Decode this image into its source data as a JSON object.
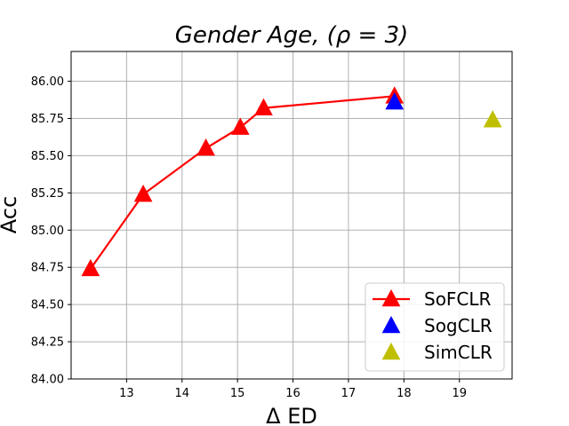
{
  "chart_data": {
    "type": "scatter",
    "title": "Gender  Age, (ρ = 3)",
    "xlabel": "Δ ED",
    "ylabel": "Acc",
    "xlim": [
      12.0,
      19.95
    ],
    "ylim": [
      84.0,
      86.2
    ],
    "xticks": [
      13,
      14,
      15,
      16,
      17,
      18,
      19
    ],
    "xtick_labels": [
      "13",
      "14",
      "15",
      "16",
      "17",
      "18",
      "19"
    ],
    "yticks": [
      84.0,
      84.25,
      84.5,
      84.75,
      85.0,
      85.25,
      85.5,
      85.75,
      86.0
    ],
    "ytick_labels": [
      "84.00",
      "84.25",
      "84.50",
      "84.75",
      "85.00",
      "85.25",
      "85.50",
      "85.75",
      "86.00"
    ],
    "grid": true,
    "legend_position": "bottom-right",
    "series": [
      {
        "name": "SoFCLR",
        "color": "#ff0000",
        "marker": "triangle",
        "line": true,
        "x": [
          12.35,
          13.3,
          14.43,
          15.05,
          15.47,
          17.83
        ],
        "y": [
          84.74,
          85.24,
          85.55,
          85.69,
          85.82,
          85.9
        ]
      },
      {
        "name": "SogCLR",
        "color": "#0000ff",
        "marker": "triangle",
        "line": false,
        "x": [
          17.83
        ],
        "y": [
          85.86
        ]
      },
      {
        "name": "SimCLR",
        "color": "#bfbf00",
        "marker": "triangle",
        "line": false,
        "x": [
          19.6
        ],
        "y": [
          85.74
        ]
      }
    ]
  }
}
